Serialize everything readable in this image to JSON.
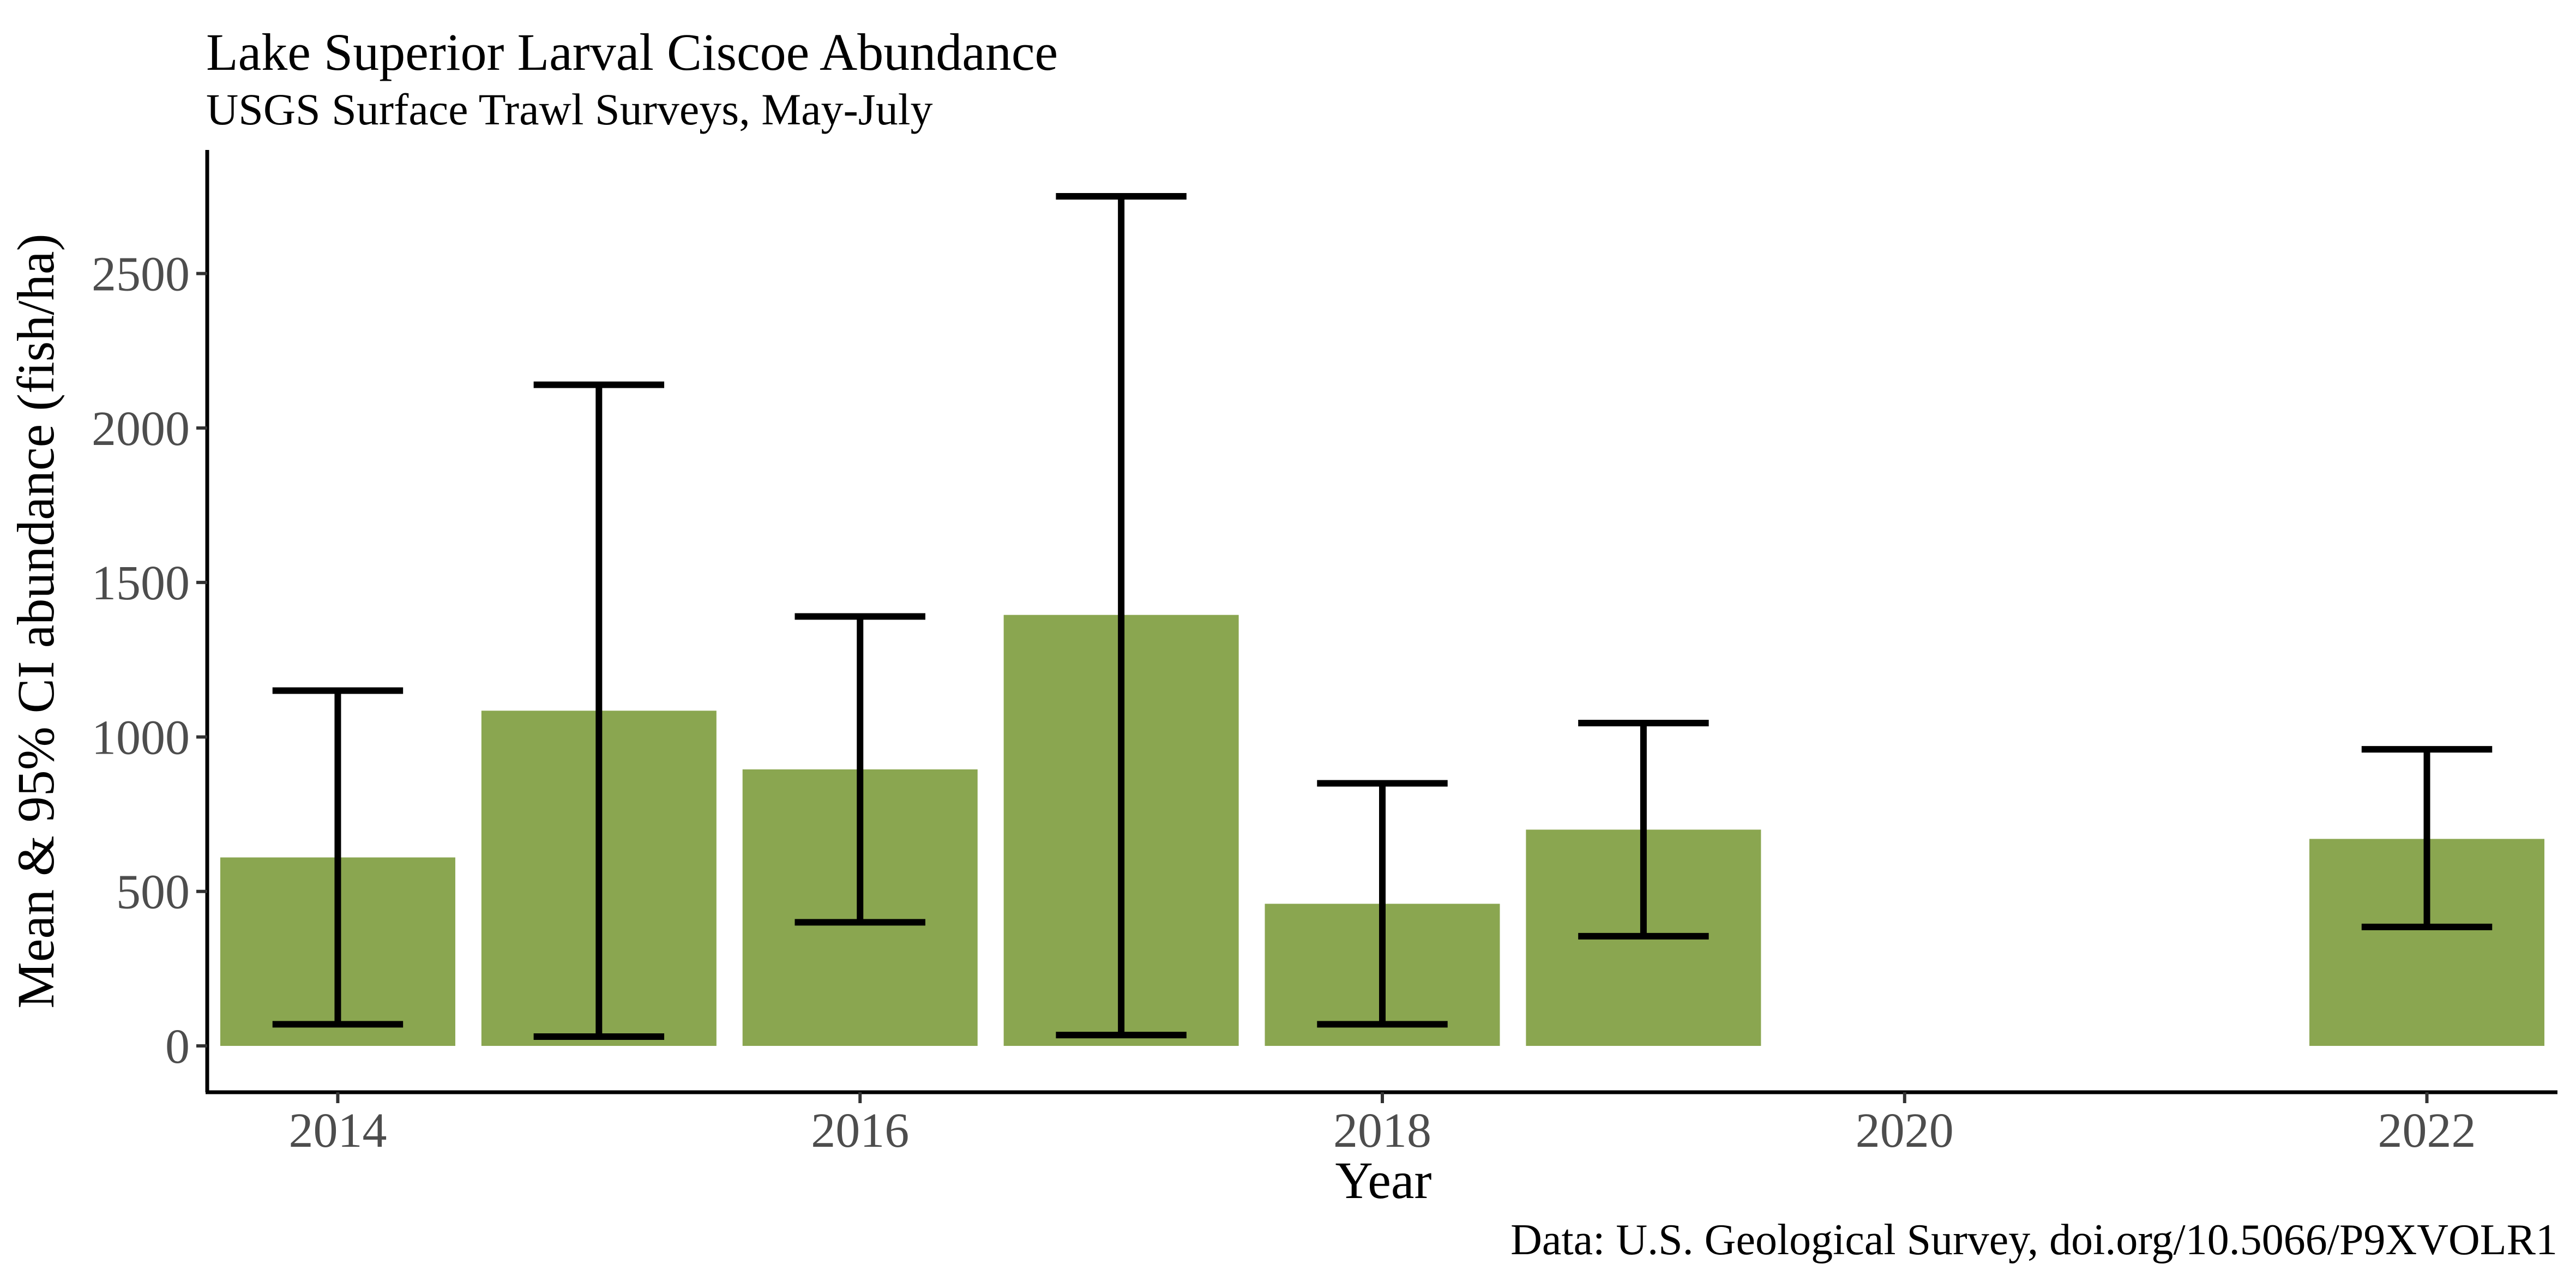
{
  "chart_data": {
    "type": "bar",
    "title": "Lake Superior Larval Ciscoe Abundance",
    "subtitle": "USGS Surface Trawl Surveys, May-July",
    "xlabel": "Year",
    "ylabel": "Mean & 95% CI abundance (fish/ha)",
    "caption": "Data: U.S. Geological Survey, doi.org/10.5066/P9XVOLR1",
    "bar_color": "#8aa650",
    "errorbar_color": "#000000",
    "xlim": [
      2013.5,
      2022.5
    ],
    "ylim": [
      -150,
      2900
    ],
    "x_ticks": [
      2014,
      2016,
      2018,
      2020,
      2022
    ],
    "y_ticks": [
      0,
      500,
      1000,
      1500,
      2000,
      2500
    ],
    "grid": false,
    "legend": "none",
    "bars": [
      {
        "year": 2014,
        "mean": 610,
        "ci_low": 70,
        "ci_high": 1150
      },
      {
        "year": 2015,
        "mean": 1085,
        "ci_low": 30,
        "ci_high": 2140
      },
      {
        "year": 2016,
        "mean": 895,
        "ci_low": 400,
        "ci_high": 1390
      },
      {
        "year": 2017,
        "mean": 1395,
        "ci_low": 35,
        "ci_high": 2750
      },
      {
        "year": 2018,
        "mean": 460,
        "ci_low": 70,
        "ci_high": 850
      },
      {
        "year": 2019,
        "mean": 700,
        "ci_low": 355,
        "ci_high": 1045
      },
      {
        "year": 2022,
        "mean": 670,
        "ci_low": 385,
        "ci_high": 960
      }
    ]
  }
}
